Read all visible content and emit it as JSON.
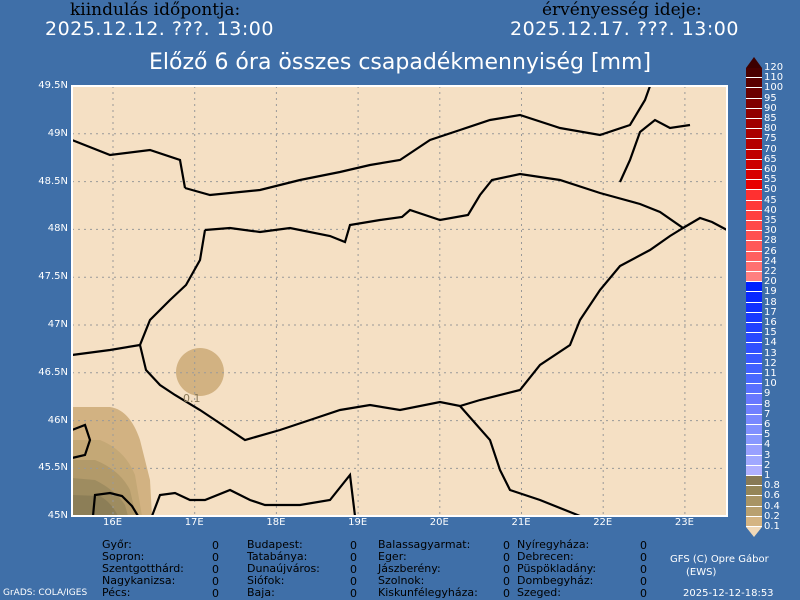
{
  "header": {
    "start_label": "kiindulás időpontja:",
    "start_date": "2025.12.12. ???. 13:00",
    "valid_label": "érvényesség ideje:",
    "valid_date": "2025.12.17. ???. 13:00"
  },
  "title": "Előző 6 óra összes csapadékmennyiség [mm]",
  "map": {
    "background": "#f5e0c4",
    "lat_labels": [
      "49.5N",
      "49N",
      "48.5N",
      "48N",
      "47.5N",
      "47N",
      "46.5N",
      "46N",
      "45.5N",
      "45N"
    ],
    "lon_labels": [
      "16E",
      "17E",
      "18E",
      "19E",
      "20E",
      "21E",
      "22E",
      "23E"
    ],
    "contour_label": "0.1"
  },
  "colorbar": {
    "labels": [
      "120",
      "110",
      "100",
      "95",
      "90",
      "85",
      "80",
      "75",
      "70",
      "65",
      "60",
      "55",
      "50",
      "45",
      "40",
      "35",
      "30",
      "28",
      "26",
      "24",
      "22",
      "20",
      "19",
      "18",
      "17",
      "16",
      "15",
      "14",
      "13",
      "12",
      "11",
      "10",
      "9",
      "8",
      "7",
      "6",
      "5",
      "4",
      "3",
      "2",
      "1",
      "0.8",
      "0.6",
      "0.4",
      "0.2",
      "0.1"
    ],
    "colors": [
      "#4a0000",
      "#5a0000",
      "#6b0000",
      "#800000",
      "#900000",
      "#a00000",
      "#aa0000",
      "#b50000",
      "#c00000",
      "#cc0000",
      "#d80000",
      "#e80000",
      "#ff3030",
      "#ff3838",
      "#ff4040",
      "#ff4848",
      "#ff5050",
      "#ff5858",
      "#ff6060",
      "#ff7070",
      "#ff8080",
      "#0020ff",
      "#0828ff",
      "#1030ff",
      "#1838ff",
      "#2040ff",
      "#2848ff",
      "#3050ff",
      "#3858ff",
      "#4060ff",
      "#4868ff",
      "#5870ff",
      "#6878ff",
      "#7080ff",
      "#7888ff",
      "#8090ff",
      "#8898ff",
      "#98a0ff",
      "#a0a8ff",
      "#b0b0ff",
      "#877955",
      "#948558",
      "#a89465",
      "#b8a070",
      "#d4b483"
    ],
    "top_color": "#3c0000",
    "bottom_color": "#f0d8b8"
  },
  "stations": [
    [
      {
        "name": "Győr:",
        "value": "0"
      },
      {
        "name": "Sopron:",
        "value": "0"
      },
      {
        "name": "Szentgotthárd:",
        "value": "0"
      },
      {
        "name": "Nagykanizsa:",
        "value": "0"
      },
      {
        "name": "Pécs:",
        "value": "0"
      }
    ],
    [
      {
        "name": "Budapest:",
        "value": "0"
      },
      {
        "name": "Tatabánya:",
        "value": "0"
      },
      {
        "name": "Dunaújváros:",
        "value": "0"
      },
      {
        "name": "Siófok:",
        "value": "0"
      },
      {
        "name": "Baja:",
        "value": "0"
      }
    ],
    [
      {
        "name": "Balassagyarmat:",
        "value": "0"
      },
      {
        "name": "Eger:",
        "value": "0"
      },
      {
        "name": "Jászberény:",
        "value": "0"
      },
      {
        "name": "Szolnok:",
        "value": "0"
      },
      {
        "name": "Kiskunfélegyháza:",
        "value": "0"
      }
    ],
    [
      {
        "name": "Nyíregyháza:",
        "value": "0"
      },
      {
        "name": "Debrecen:",
        "value": "0"
      },
      {
        "name": "Püspökladány:",
        "value": "0"
      },
      {
        "name": "Dombegyház:",
        "value": "0"
      },
      {
        "name": "Szeged:",
        "value": "0"
      }
    ]
  ],
  "footer": {
    "credit": "GFS (C) Opre Gábor",
    "credit2": "(EWS)",
    "grads": "GrADS: COLA/IGES",
    "timestamp": "2025-12-12-18:53"
  }
}
